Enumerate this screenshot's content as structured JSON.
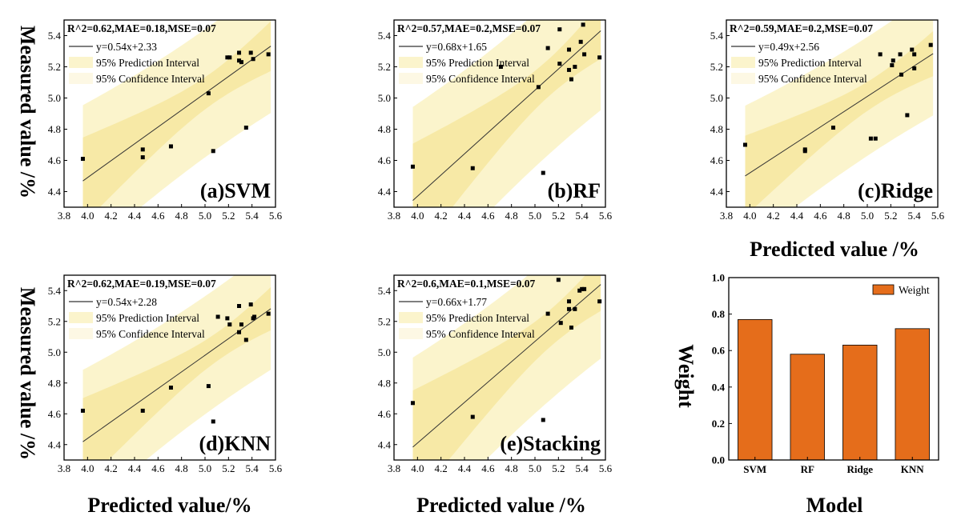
{
  "figure": {
    "ylabel_left": "Measured value /%",
    "xlabel_bottom": [
      "Predicted value/%",
      "Predicted value /%",
      "Model"
    ],
    "xlabel_ridge": "Predicted value /%",
    "ylabel_weight": "Weight"
  },
  "colors": {
    "prediction_band": "#fbf4cc",
    "confidence_band": "#f7e9a6",
    "bar": "#e56d1b",
    "bar_edge": "#000000",
    "fit_line": "#333333",
    "points": "#000000"
  },
  "legend_labels": {
    "prediction": "95% Prediction Interval",
    "confidence": "95% Confidence Interval"
  },
  "chart_data": [
    {
      "type": "scatter",
      "panel": "(a)SVM",
      "stats": "R^2=0.62,MAE=0.18,MSE=0.07",
      "fit_label": "y=0.54x+2.33",
      "fit": {
        "slope": 0.54,
        "intercept": 2.33
      },
      "xlim": [
        3.8,
        5.6
      ],
      "ylim": [
        4.3,
        5.5
      ],
      "xticks": [
        "3.8",
        "4.0",
        "4.2",
        "4.4",
        "4.6",
        "4.8",
        "5.0",
        "5.2",
        "5.4",
        "5.6"
      ],
      "yticks": [
        "4.4",
        "4.6",
        "4.8",
        "5.0",
        "5.2",
        "5.4"
      ],
      "points": [
        [
          3.96,
          4.61
        ],
        [
          4.47,
          4.67
        ],
        [
          4.47,
          4.62
        ],
        [
          4.71,
          4.69
        ],
        [
          5.03,
          5.03
        ],
        [
          5.07,
          4.66
        ],
        [
          5.19,
          5.26
        ],
        [
          5.21,
          5.26
        ],
        [
          5.29,
          5.29
        ],
        [
          5.29,
          5.24
        ],
        [
          5.31,
          5.23
        ],
        [
          5.35,
          4.81
        ],
        [
          5.39,
          5.29
        ],
        [
          5.41,
          5.25
        ],
        [
          5.54,
          5.28
        ]
      ]
    },
    {
      "type": "scatter",
      "panel": "(b)RF",
      "stats": "R^2=0.57,MAE=0.2,MSE=0.07",
      "fit_label": "y=0.68x+1.65",
      "fit": {
        "slope": 0.68,
        "intercept": 1.65
      },
      "xlim": [
        3.8,
        5.6
      ],
      "ylim": [
        4.3,
        5.5
      ],
      "xticks": [
        "3.8",
        "4.0",
        "4.2",
        "4.4",
        "4.6",
        "4.8",
        "5.0",
        "5.2",
        "5.4",
        "5.6"
      ],
      "yticks": [
        "4.4",
        "4.6",
        "4.8",
        "5.0",
        "5.2",
        "5.4"
      ],
      "points": [
        [
          3.96,
          4.56
        ],
        [
          4.47,
          4.55
        ],
        [
          4.71,
          5.2
        ],
        [
          5.03,
          5.07
        ],
        [
          5.07,
          4.52
        ],
        [
          5.11,
          5.32
        ],
        [
          5.21,
          5.44
        ],
        [
          5.21,
          5.22
        ],
        [
          5.29,
          5.31
        ],
        [
          5.29,
          5.18
        ],
        [
          5.31,
          5.12
        ],
        [
          5.34,
          5.2
        ],
        [
          5.39,
          5.36
        ],
        [
          5.41,
          5.47
        ],
        [
          5.42,
          5.28
        ],
        [
          5.55,
          5.26
        ]
      ]
    },
    {
      "type": "scatter",
      "panel": "(c)Ridge",
      "stats": "R^2=0.59,MAE=0.2,MSE=0.07",
      "fit_label": "y=0.49x+2.56",
      "fit": {
        "slope": 0.49,
        "intercept": 2.56
      },
      "xlim": [
        3.8,
        5.6
      ],
      "ylim": [
        4.3,
        5.5
      ],
      "xticks": [
        "3.8",
        "4.0",
        "4.2",
        "4.4",
        "4.6",
        "4.8",
        "5.0",
        "5.2",
        "5.4",
        "5.6"
      ],
      "yticks": [
        "4.4",
        "4.6",
        "4.8",
        "5.0",
        "5.2",
        "5.4"
      ],
      "points": [
        [
          3.96,
          4.7
        ],
        [
          4.47,
          4.67
        ],
        [
          4.47,
          4.66
        ],
        [
          4.71,
          4.81
        ],
        [
          5.03,
          4.74
        ],
        [
          5.07,
          4.74
        ],
        [
          5.11,
          5.28
        ],
        [
          5.21,
          5.21
        ],
        [
          5.22,
          5.24
        ],
        [
          5.28,
          5.28
        ],
        [
          5.29,
          5.15
        ],
        [
          5.34,
          4.89
        ],
        [
          5.38,
          5.31
        ],
        [
          5.4,
          5.28
        ],
        [
          5.4,
          5.19
        ],
        [
          5.54,
          5.34
        ]
      ]
    },
    {
      "type": "scatter",
      "panel": "(d)KNN",
      "stats": "R^2=0.62,MAE=0.19,MSE=0.07",
      "fit_label": "y=0.54x+2.28",
      "fit": {
        "slope": 0.54,
        "intercept": 2.28
      },
      "xlim": [
        3.8,
        5.6
      ],
      "ylim": [
        4.3,
        5.5
      ],
      "xticks": [
        "3.8",
        "4.0",
        "4.2",
        "4.4",
        "4.6",
        "4.8",
        "5.0",
        "5.2",
        "5.4",
        "5.6"
      ],
      "yticks": [
        "4.4",
        "4.6",
        "4.8",
        "5.0",
        "5.2",
        "5.4"
      ],
      "points": [
        [
          3.96,
          4.62
        ],
        [
          4.47,
          4.62
        ],
        [
          4.71,
          4.77
        ],
        [
          5.03,
          4.78
        ],
        [
          5.07,
          4.55
        ],
        [
          5.11,
          5.23
        ],
        [
          5.19,
          5.22
        ],
        [
          5.21,
          5.18
        ],
        [
          5.29,
          5.3
        ],
        [
          5.29,
          5.13
        ],
        [
          5.31,
          5.18
        ],
        [
          5.35,
          5.08
        ],
        [
          5.39,
          5.31
        ],
        [
          5.41,
          5.22
        ],
        [
          5.42,
          5.23
        ],
        [
          5.54,
          5.25
        ]
      ]
    },
    {
      "type": "scatter",
      "panel": "(e)Stacking",
      "stats": "R^2=0.6,MAE=0.1,MSE=0.07",
      "fit_label": "y=0.66x+1.77",
      "fit": {
        "slope": 0.66,
        "intercept": 1.77
      },
      "xlim": [
        3.8,
        5.6
      ],
      "ylim": [
        4.3,
        5.5
      ],
      "xticks": [
        "3.8",
        "4.0",
        "4.2",
        "4.4",
        "4.6",
        "4.8",
        "5.0",
        "5.2",
        "5.4",
        "5.6"
      ],
      "yticks": [
        "4.4",
        "4.6",
        "4.8",
        "5.0",
        "5.2",
        "5.4"
      ],
      "points": [
        [
          3.96,
          4.67
        ],
        [
          4.47,
          4.58
        ],
        [
          5.07,
          4.56
        ],
        [
          5.11,
          5.25
        ],
        [
          5.2,
          5.47
        ],
        [
          5.22,
          5.19
        ],
        [
          5.29,
          5.33
        ],
        [
          5.29,
          5.28
        ],
        [
          5.31,
          5.16
        ],
        [
          5.34,
          5.28
        ],
        [
          5.38,
          5.4
        ],
        [
          5.4,
          5.41
        ],
        [
          5.42,
          5.41
        ],
        [
          5.55,
          5.33
        ]
      ]
    },
    {
      "type": "bar",
      "panel": "weight",
      "categories": [
        "SVM",
        "RF",
        "Ridge",
        "KNN"
      ],
      "values": [
        0.77,
        0.58,
        0.63,
        0.72
      ],
      "xlabel": "Model",
      "ylabel": "Weight",
      "ylim": [
        0.0,
        1.0
      ],
      "yticks": [
        "0.0",
        "0.2",
        "0.4",
        "0.6",
        "0.8",
        "1.0"
      ],
      "legend": "Weight",
      "legend_position": "top-right"
    }
  ]
}
